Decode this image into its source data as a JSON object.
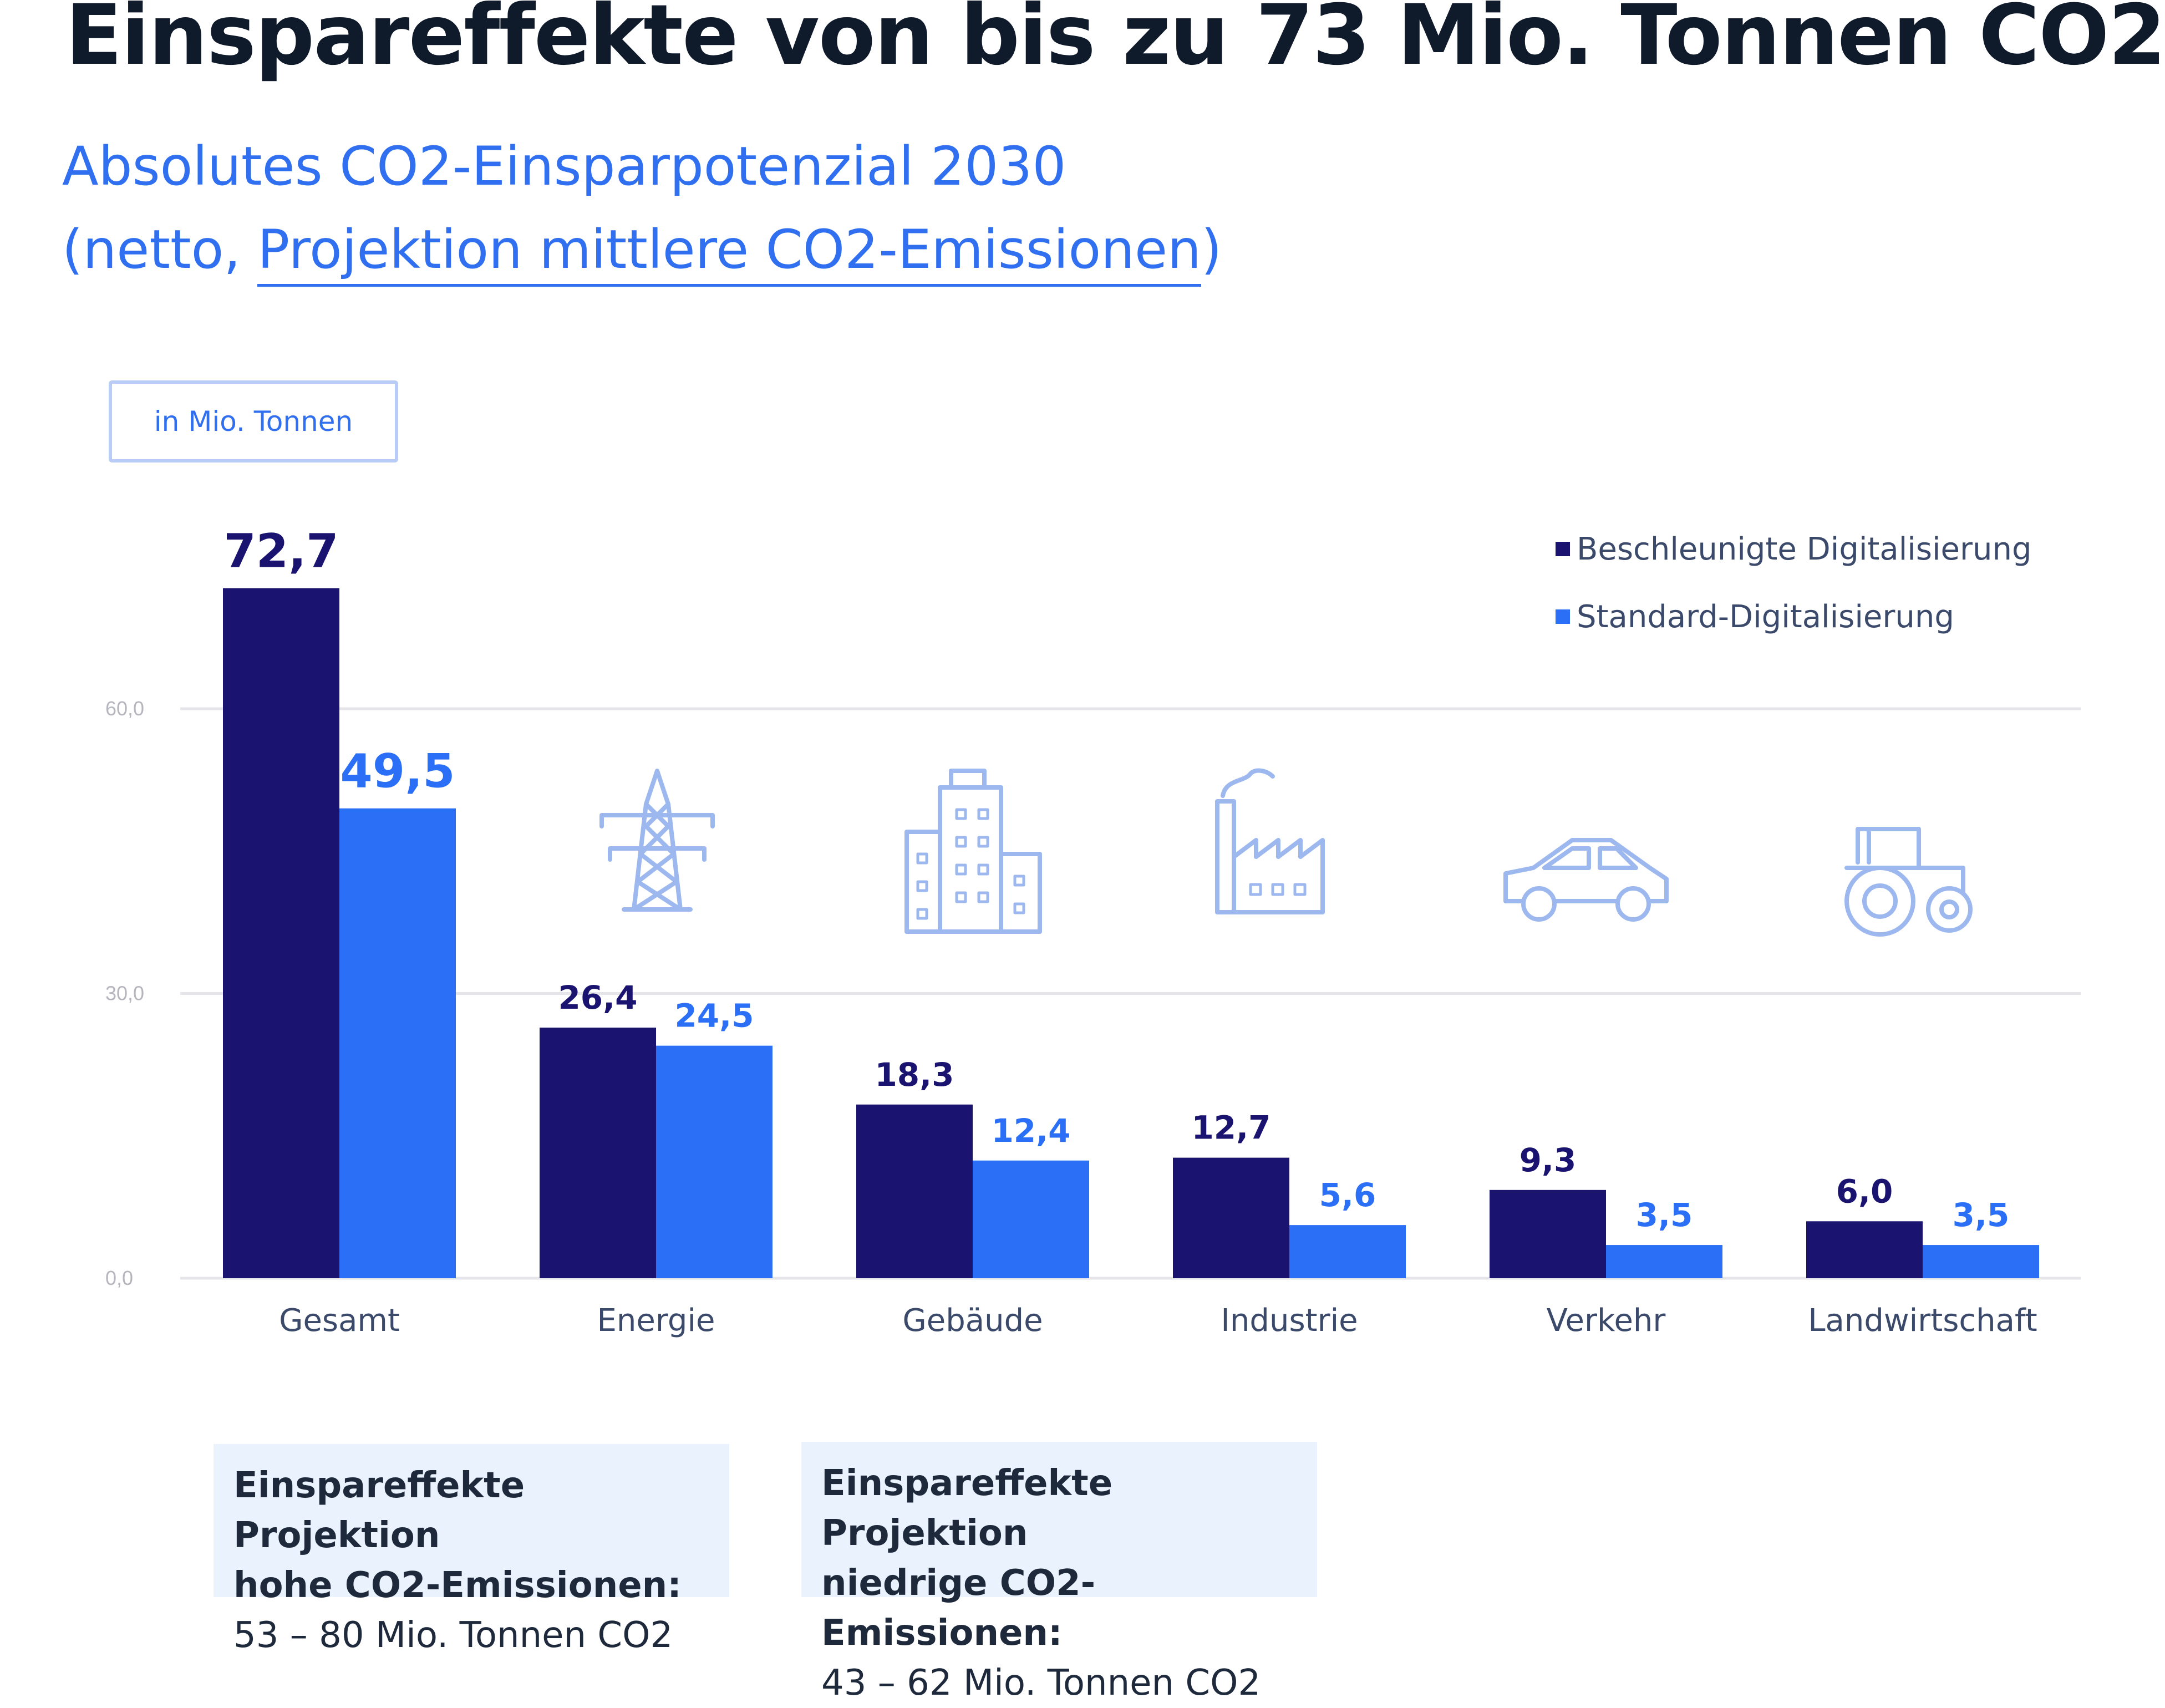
{
  "title": "Einspareffekte von bis zu 73 Mio. Tonnen CO2",
  "subtitle": {
    "line1": "Absolutes CO2-Einsparpotenzial 2030",
    "line2_prefix": "(netto, ",
    "line2_link": "Projektion mittlere CO2-Emissionen",
    "line2_suffix": ")"
  },
  "unit_label": "in Mio. Tonnen",
  "colors": {
    "accelerated": "#1a1370",
    "standard": "#2a6ff5",
    "grid": "#e5e5ea",
    "icon": "#9db8ef"
  },
  "legend": {
    "accelerated": "Beschleunigte Digitalisierung",
    "standard": "Standard-Digitalisierung"
  },
  "chart_data": {
    "type": "bar",
    "title": "Absolutes CO2-Einsparpotenzial 2030",
    "ylabel": "in Mio. Tonnen",
    "xlabel": "",
    "ylim": [
      0,
      75
    ],
    "yticks": [
      0,
      30,
      60
    ],
    "ytick_labels": [
      "0,0",
      "30,0",
      "60,0"
    ],
    "grid": true,
    "legend_position": "top-right",
    "categories": [
      "Gesamt",
      "Energie",
      "Gebäude",
      "Industrie",
      "Verkehr",
      "Landwirtschaft"
    ],
    "category_icons": [
      "",
      "power-pylon-icon",
      "building-icon",
      "factory-icon",
      "car-icon",
      "tractor-icon"
    ],
    "series": [
      {
        "name": "Beschleunigte Digitalisierung",
        "values": [
          72.7,
          26.4,
          18.3,
          12.7,
          9.3,
          6.0
        ],
        "labels": [
          "72,7",
          "26,4",
          "18,3",
          "12,7",
          "9,3",
          "6,0"
        ]
      },
      {
        "name": "Standard-Digitalisierung",
        "values": [
          49.5,
          24.5,
          12.4,
          5.6,
          3.5,
          3.5
        ],
        "labels": [
          "49,5",
          "24,5",
          "12,4",
          "5,6",
          "3,5",
          "3,5"
        ]
      }
    ]
  },
  "notes": [
    {
      "line1": "Einspareffekte Projektion",
      "line2": "hohe CO2-Emissionen:",
      "range": "53 – 80 Mio. Tonnen CO2"
    },
    {
      "line1": "Einspareffekte Projektion",
      "line2": "niedrige CO2-Emissionen:",
      "range": "43 – 62 Mio. Tonnen CO2"
    }
  ]
}
